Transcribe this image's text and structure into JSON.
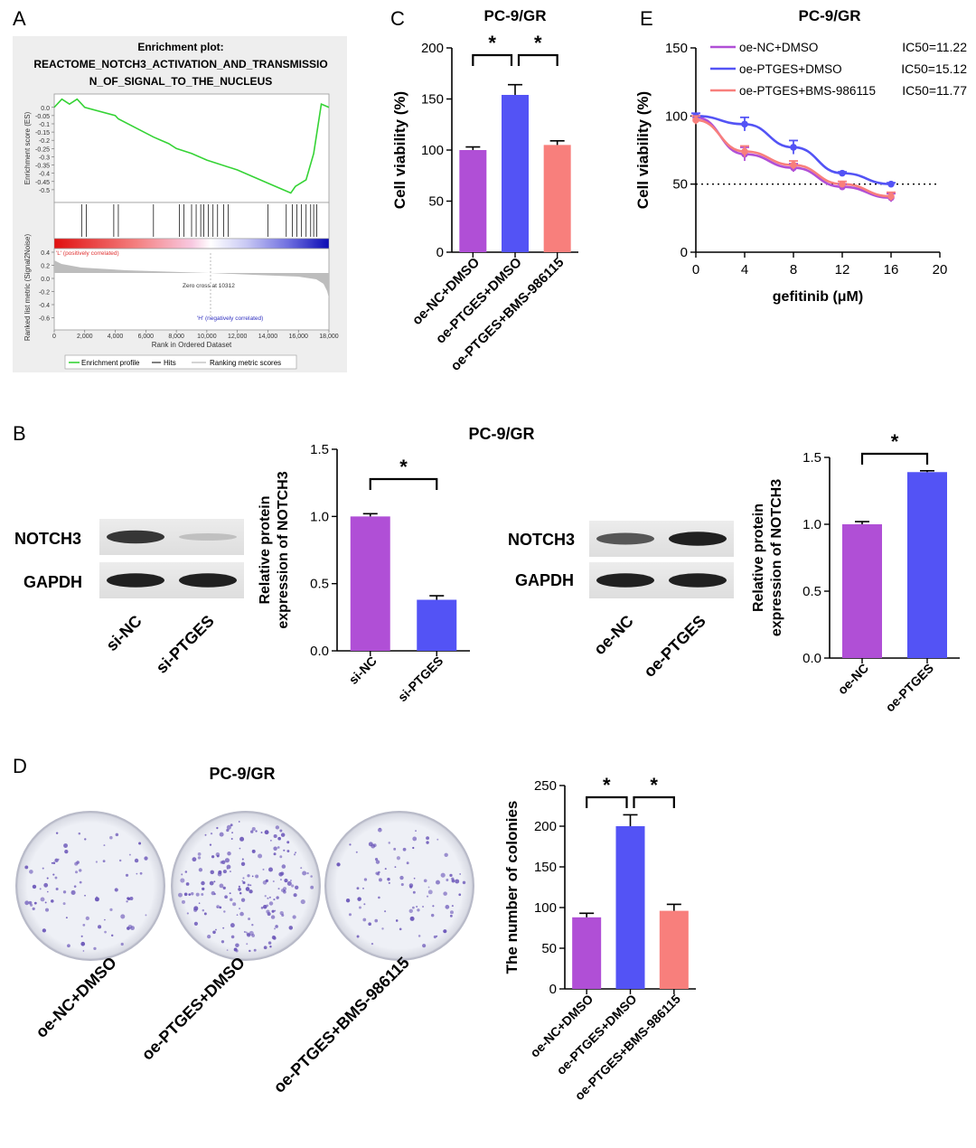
{
  "colors": {
    "purple": "#b04fd6",
    "blue": "#5353f5",
    "salmon": "#f87f7c",
    "green": "#35d335",
    "gsea_bg": "#eeeeee",
    "dish": "#eff0f5",
    "colony": "#6a55b8"
  },
  "panels": {
    "A": {
      "letter": "A",
      "title_line1": "Enrichment plot:",
      "title_line2": "REACTOME_NOTCH3_ACTIVATION_AND_TRANSMISSIO",
      "title_line3": "N_OF_SIGNAL_TO_THE_NUCLEUS",
      "es_label": "Enrichment score (ES)",
      "es_ticks": [
        "0.0",
        "-0.05",
        "-0.1",
        "-0.15",
        "-0.2",
        "-0.25",
        "-0.3",
        "-0.35",
        "-0.4",
        "-0.45",
        "-0.5"
      ],
      "rank_label": "Ranked list metric (Signal2Noise)",
      "rank_ticks": [
        "0.4",
        "0.2",
        "0.0",
        "-0.2",
        "-0.4",
        "-0.6"
      ],
      "pos_label": "'L' (positively correlated)",
      "neg_label": "'H' (negatively correlated)",
      "zero_cross": "Zero cross at 10312",
      "xlabel": "Rank in Ordered Dataset",
      "x_ticks": [
        "0",
        "2,000",
        "4,000",
        "6,000",
        "8,000",
        "10,000",
        "12,000",
        "14,000",
        "16,000",
        "18,000"
      ],
      "legend": [
        "Enrichment profile",
        "Hits",
        "Ranking metric scores"
      ]
    },
    "B": {
      "letter": "B",
      "title": "PC-9/GR"
    },
    "C": {
      "letter": "C"
    },
    "D": {
      "letter": "D",
      "title": "PC-9/GR"
    },
    "E": {
      "letter": "E"
    }
  },
  "western_left": {
    "rows": [
      "NOTCH3",
      "GAPDH"
    ],
    "lanes": [
      "si-NC",
      "si-PTGES"
    ],
    "notch3_intensity": [
      0.85,
      0.2
    ],
    "gapdh_intensity": [
      0.95,
      0.95
    ]
  },
  "western_right": {
    "rows": [
      "NOTCH3",
      "GAPDH"
    ],
    "lanes": [
      "oe-NC",
      "oe-PTGES"
    ],
    "notch3_intensity": [
      0.7,
      0.95
    ],
    "gapdh_intensity": [
      0.95,
      0.95
    ]
  },
  "dishes": {
    "labels": [
      "oe-NC+DMSO",
      "oe-PTGES+DMSO",
      "oe-PTGES+BMS-986115"
    ],
    "colony_density": [
      88,
      200,
      96
    ]
  },
  "chart_data": [
    {
      "id": "gsea",
      "type": "line",
      "series": [
        {
          "x": [
            0,
            500,
            1000,
            1500,
            2000,
            4000,
            4200,
            6500,
            7000,
            7500,
            8000,
            9000,
            10000,
            12000,
            14000,
            15500,
            15800,
            16500,
            17000,
            17500,
            18000
          ],
          "y": [
            0.0,
            0.05,
            0.02,
            0.05,
            0.0,
            -0.05,
            -0.07,
            -0.18,
            -0.2,
            -0.22,
            -0.25,
            -0.28,
            -0.32,
            -0.38,
            -0.46,
            -0.52,
            -0.48,
            -0.44,
            -0.28,
            0.02,
            0.0
          ]
        }
      ],
      "hits": [
        1800,
        2100,
        3900,
        4200,
        6500,
        8200,
        8500,
        9000,
        9300,
        9600,
        9800,
        10100,
        10400,
        10700,
        11100,
        11400,
        14000,
        15200,
        15600,
        15900,
        16200,
        16500,
        16800,
        17000,
        17200
      ],
      "xlim": [
        0,
        18000
      ],
      "ylim": [
        -0.55,
        0.07
      ]
    },
    {
      "id": "panelB-left",
      "type": "bar",
      "categories": [
        "si-NC",
        "si-PTGES"
      ],
      "values": [
        1.0,
        0.38
      ],
      "errors": [
        0.02,
        0.03
      ],
      "ylabel_line1": "Relative protein",
      "ylabel_line2": "expression of NOTCH3",
      "ylim": [
        0,
        1.5
      ],
      "yticks": [
        "0.0",
        "0.5",
        "1.0",
        "1.5"
      ],
      "significance": [
        {
          "from": 0,
          "to": 1,
          "label": "*"
        }
      ]
    },
    {
      "id": "panelB-right",
      "type": "bar",
      "categories": [
        "oe-NC",
        "oe-PTGES"
      ],
      "values": [
        1.0,
        1.39
      ],
      "errors": [
        0.02,
        0.01
      ],
      "ylabel_line1": "Relative protein",
      "ylabel_line2": "expression of NOTCH3",
      "ylim": [
        0,
        1.5
      ],
      "yticks": [
        "0.0",
        "0.5",
        "1.0",
        "1.5"
      ],
      "significance": [
        {
          "from": 0,
          "to": 1,
          "label": "*"
        }
      ]
    },
    {
      "id": "panelC",
      "type": "bar",
      "title": "PC-9/GR",
      "categories": [
        "oe-NC+DMSO",
        "oe-PTGES+DMSO",
        "oe-PTGES+BMS-986115"
      ],
      "values": [
        100,
        154,
        105
      ],
      "errors": [
        3,
        10,
        4
      ],
      "ylabel": "Cell viability (%)",
      "ylim": [
        0,
        200
      ],
      "yticks": [
        "0",
        "50",
        "100",
        "150",
        "200"
      ],
      "significance": [
        {
          "from": 0,
          "to": 1,
          "label": "*"
        },
        {
          "from": 1,
          "to": 2,
          "label": "*"
        }
      ]
    },
    {
      "id": "panelD",
      "type": "bar",
      "categories": [
        "oe-NC+DMSO",
        "oe-PTGES+DMSO",
        "oe-PTGES+BMS-986115"
      ],
      "values": [
        88,
        200,
        96
      ],
      "errors": [
        5,
        14,
        8
      ],
      "ylabel": "The number of colonies",
      "ylim": [
        0,
        250
      ],
      "yticks": [
        "0",
        "50",
        "100",
        "150",
        "200",
        "250"
      ],
      "significance": [
        {
          "from": 0,
          "to": 1,
          "label": "*"
        },
        {
          "from": 1,
          "to": 2,
          "label": "*"
        }
      ]
    },
    {
      "id": "panelE",
      "type": "line",
      "title": "PC-9/GR",
      "xlabel": "gefitinib (μM)",
      "ylabel": "Cell viability (%)",
      "xlim": [
        0,
        20
      ],
      "ylim": [
        0,
        150
      ],
      "xticks": [
        "0",
        "4",
        "8",
        "12",
        "16",
        "20"
      ],
      "yticks": [
        "0",
        "50",
        "100",
        "150"
      ],
      "reference_line_y": 50,
      "series": [
        {
          "name": "oe-NC+DMSO",
          "ic50_label": "IC50=11.22",
          "x": [
            0,
            4,
            8,
            12,
            16
          ],
          "y": [
            99,
            72,
            62,
            48,
            40
          ],
          "err": [
            3,
            5,
            3,
            2,
            3
          ]
        },
        {
          "name": "oe-PTGES+DMSO",
          "ic50_label": "IC50=15.12",
          "x": [
            0,
            4,
            8,
            12,
            16
          ],
          "y": [
            100,
            94,
            77,
            58,
            50
          ],
          "err": [
            2,
            5,
            5,
            1,
            1
          ]
        },
        {
          "name": "oe-PTGES+BMS-986115",
          "ic50_label": "IC50=11.77",
          "x": [
            0,
            4,
            8,
            12,
            16
          ],
          "y": [
            97,
            74,
            64,
            50,
            41
          ],
          "err": [
            3,
            4,
            3,
            2,
            3
          ]
        }
      ]
    }
  ]
}
